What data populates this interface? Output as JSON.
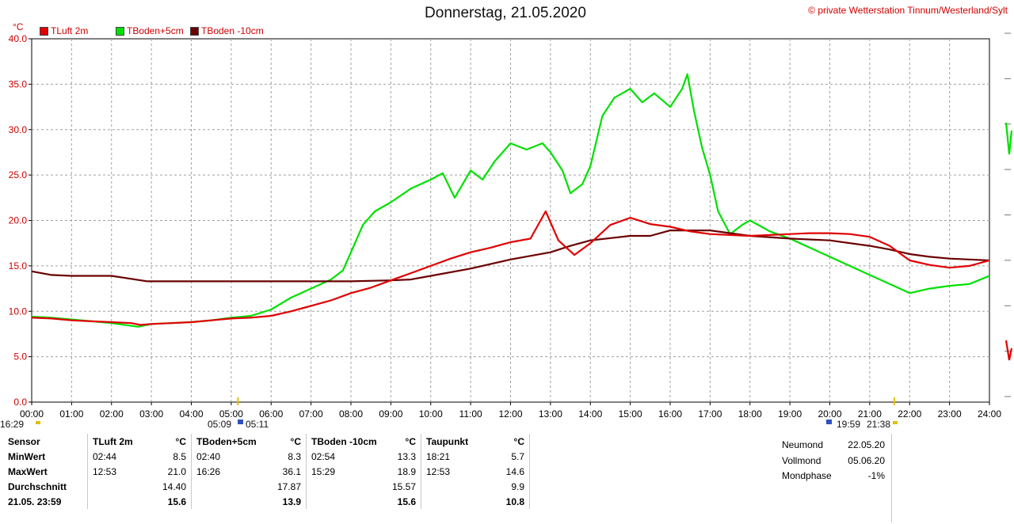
{
  "title": "Donnerstag, 21.05.2020",
  "copyright": "© private Wetterstation Tinnum/Westerland/Sylt",
  "unit_label": "°C",
  "colors": {
    "tluft": "#e00000",
    "tboden5": "#00e000",
    "tboden10": "#6a0000",
    "grid": "#a0a0a0"
  },
  "sun": {
    "rise_label": "16:29",
    "rise2": "05:09",
    "rise3": "05:11",
    "set1": "19:59",
    "set2": "21:38"
  },
  "chart_data": {
    "type": "line",
    "title": "Donnerstag, 21.05.2020",
    "ylabel": "°C",
    "ylim": [
      0,
      40
    ],
    "xlim": [
      0,
      24
    ],
    "yticks": [
      "0.0",
      "5.0",
      "10.0",
      "15.0",
      "20.0",
      "25.0",
      "30.0",
      "35.0",
      "40.0"
    ],
    "xticks": [
      "00:00",
      "01:00",
      "02:00",
      "03:00",
      "04:00",
      "05:00",
      "06:00",
      "07:00",
      "08:00",
      "09:00",
      "10:00",
      "11:00",
      "12:00",
      "13:00",
      "14:00",
      "15:00",
      "16:00",
      "17:00",
      "18:00",
      "19:00",
      "20:00",
      "21:00",
      "22:00",
      "23:00",
      "24:00"
    ],
    "grid": true,
    "legend_position": "top-left",
    "series": [
      {
        "name": "TLuft 2m",
        "color": "#e00000",
        "x": [
          0,
          0.5,
          1,
          1.5,
          2,
          2.5,
          2.73,
          3,
          3.5,
          4,
          4.5,
          5,
          5.5,
          6,
          6.5,
          7,
          7.5,
          8,
          8.5,
          9,
          9.5,
          10,
          10.5,
          11,
          11.5,
          12,
          12.5,
          12.88,
          13.2,
          13.6,
          14,
          14.5,
          15,
          15.5,
          16,
          16.5,
          17,
          17.5,
          18,
          18.5,
          19,
          19.5,
          20,
          20.5,
          21,
          21.5,
          22,
          22.5,
          23,
          23.5,
          24
        ],
        "y": [
          9.3,
          9.2,
          9.0,
          8.9,
          8.8,
          8.7,
          8.5,
          8.6,
          8.7,
          8.8,
          9.0,
          9.2,
          9.3,
          9.5,
          10.0,
          10.6,
          11.2,
          12.0,
          12.6,
          13.4,
          14.2,
          15.0,
          15.8,
          16.5,
          17.0,
          17.6,
          18.0,
          21.0,
          17.8,
          16.2,
          17.5,
          19.5,
          20.3,
          19.6,
          19.3,
          18.8,
          18.5,
          18.4,
          18.3,
          18.4,
          18.5,
          18.6,
          18.6,
          18.5,
          18.2,
          17.2,
          15.6,
          15.1,
          14.8,
          15.0,
          15.6
        ]
      },
      {
        "name": "TBoden+5cm",
        "color": "#00e000",
        "x": [
          0,
          0.5,
          1,
          1.5,
          2,
          2.67,
          3,
          3.5,
          4,
          4.5,
          5,
          5.5,
          6,
          6.5,
          7,
          7.5,
          7.8,
          8,
          8.3,
          8.6,
          9,
          9.5,
          10,
          10.3,
          10.6,
          11,
          11.3,
          11.6,
          12,
          12.4,
          12.8,
          13,
          13.3,
          13.5,
          13.8,
          14,
          14.3,
          14.6,
          15,
          15.3,
          15.6,
          16,
          16.3,
          16.43,
          16.6,
          16.8,
          17,
          17.2,
          17.5,
          17.8,
          18,
          18.5,
          19,
          19.5,
          20,
          20.5,
          21,
          21.5,
          22,
          22.5,
          23,
          23.5,
          24
        ],
        "y": [
          9.4,
          9.3,
          9.1,
          8.9,
          8.7,
          8.3,
          8.6,
          8.7,
          8.8,
          9.0,
          9.3,
          9.5,
          10.2,
          11.5,
          12.5,
          13.5,
          14.5,
          16.5,
          19.5,
          21.0,
          22.0,
          23.5,
          24.5,
          25.2,
          22.5,
          25.5,
          24.5,
          26.5,
          28.5,
          27.8,
          28.5,
          27.5,
          25.5,
          23.0,
          24.0,
          26.0,
          31.5,
          33.5,
          34.5,
          33.0,
          34.0,
          32.5,
          34.5,
          36.1,
          32.0,
          28.0,
          25.0,
          21.0,
          18.5,
          19.5,
          20.0,
          18.8,
          18.0,
          17.0,
          16.0,
          15.0,
          14.0,
          13.0,
          12.0,
          12.5,
          12.8,
          13.0,
          13.9
        ]
      },
      {
        "name": "TBoden -10cm",
        "color": "#6a0000",
        "x": [
          0,
          0.5,
          1,
          2,
          2.9,
          3.5,
          4,
          5,
          6,
          7,
          8,
          9,
          9.5,
          10,
          11,
          12,
          13,
          13.5,
          14,
          15,
          15.5,
          16,
          17,
          18,
          19,
          20,
          21,
          21.5,
          22,
          22.5,
          23,
          23.5,
          24
        ],
        "y": [
          14.4,
          14.0,
          13.9,
          13.9,
          13.3,
          13.3,
          13.3,
          13.3,
          13.3,
          13.3,
          13.3,
          13.4,
          13.5,
          13.9,
          14.7,
          15.7,
          16.5,
          17.2,
          17.8,
          18.3,
          18.3,
          18.9,
          18.9,
          18.3,
          18.0,
          17.8,
          17.2,
          16.8,
          16.3,
          16.0,
          15.8,
          15.7,
          15.6
        ]
      }
    ]
  },
  "stats": {
    "headers": {
      "sensor": "Sensor",
      "tluft": "TLuft 2m",
      "unit1": "°C",
      "tboden5": "TBoden+5cm",
      "unit2": "°C",
      "tboden10": "TBoden -10cm",
      "unit3": "°C",
      "taupunkt": "Taupunkt",
      "unit4": "°C"
    },
    "rows": [
      {
        "label": "MinWert",
        "c1t": "02:44",
        "c1v": "8.5",
        "c2t": "02:40",
        "c2v": "8.3",
        "c3t": "02:54",
        "c3v": "13.3",
        "c4t": "18:21",
        "c4v": "5.7"
      },
      {
        "label": "MaxWert",
        "c1t": "12:53",
        "c1v": "21.0",
        "c2t": "16:26",
        "c2v": "36.1",
        "c3t": "15:29",
        "c3v": "18.9",
        "c4t": "12:53",
        "c4v": "14.6"
      },
      {
        "label": "Durchschnitt",
        "c1t": "",
        "c1v": "14.40",
        "c2t": "",
        "c2v": "17.87",
        "c3t": "",
        "c3v": "15.57",
        "c4t": "",
        "c4v": "9.9"
      },
      {
        "label": "21.05. 23:59",
        "c1t": "",
        "c1v": "15.6",
        "c2t": "",
        "c2v": "13.9",
        "c3t": "",
        "c3v": "15.6",
        "c4t": "",
        "c4v": "10.8"
      }
    ]
  },
  "moon": {
    "neumond_label": "Neumond",
    "neumond_value": "22.05.20",
    "vollmond_label": "Vollmond",
    "vollmond_value": "05.06.20",
    "phase_label": "Mondphase",
    "phase_value": "-1%"
  }
}
